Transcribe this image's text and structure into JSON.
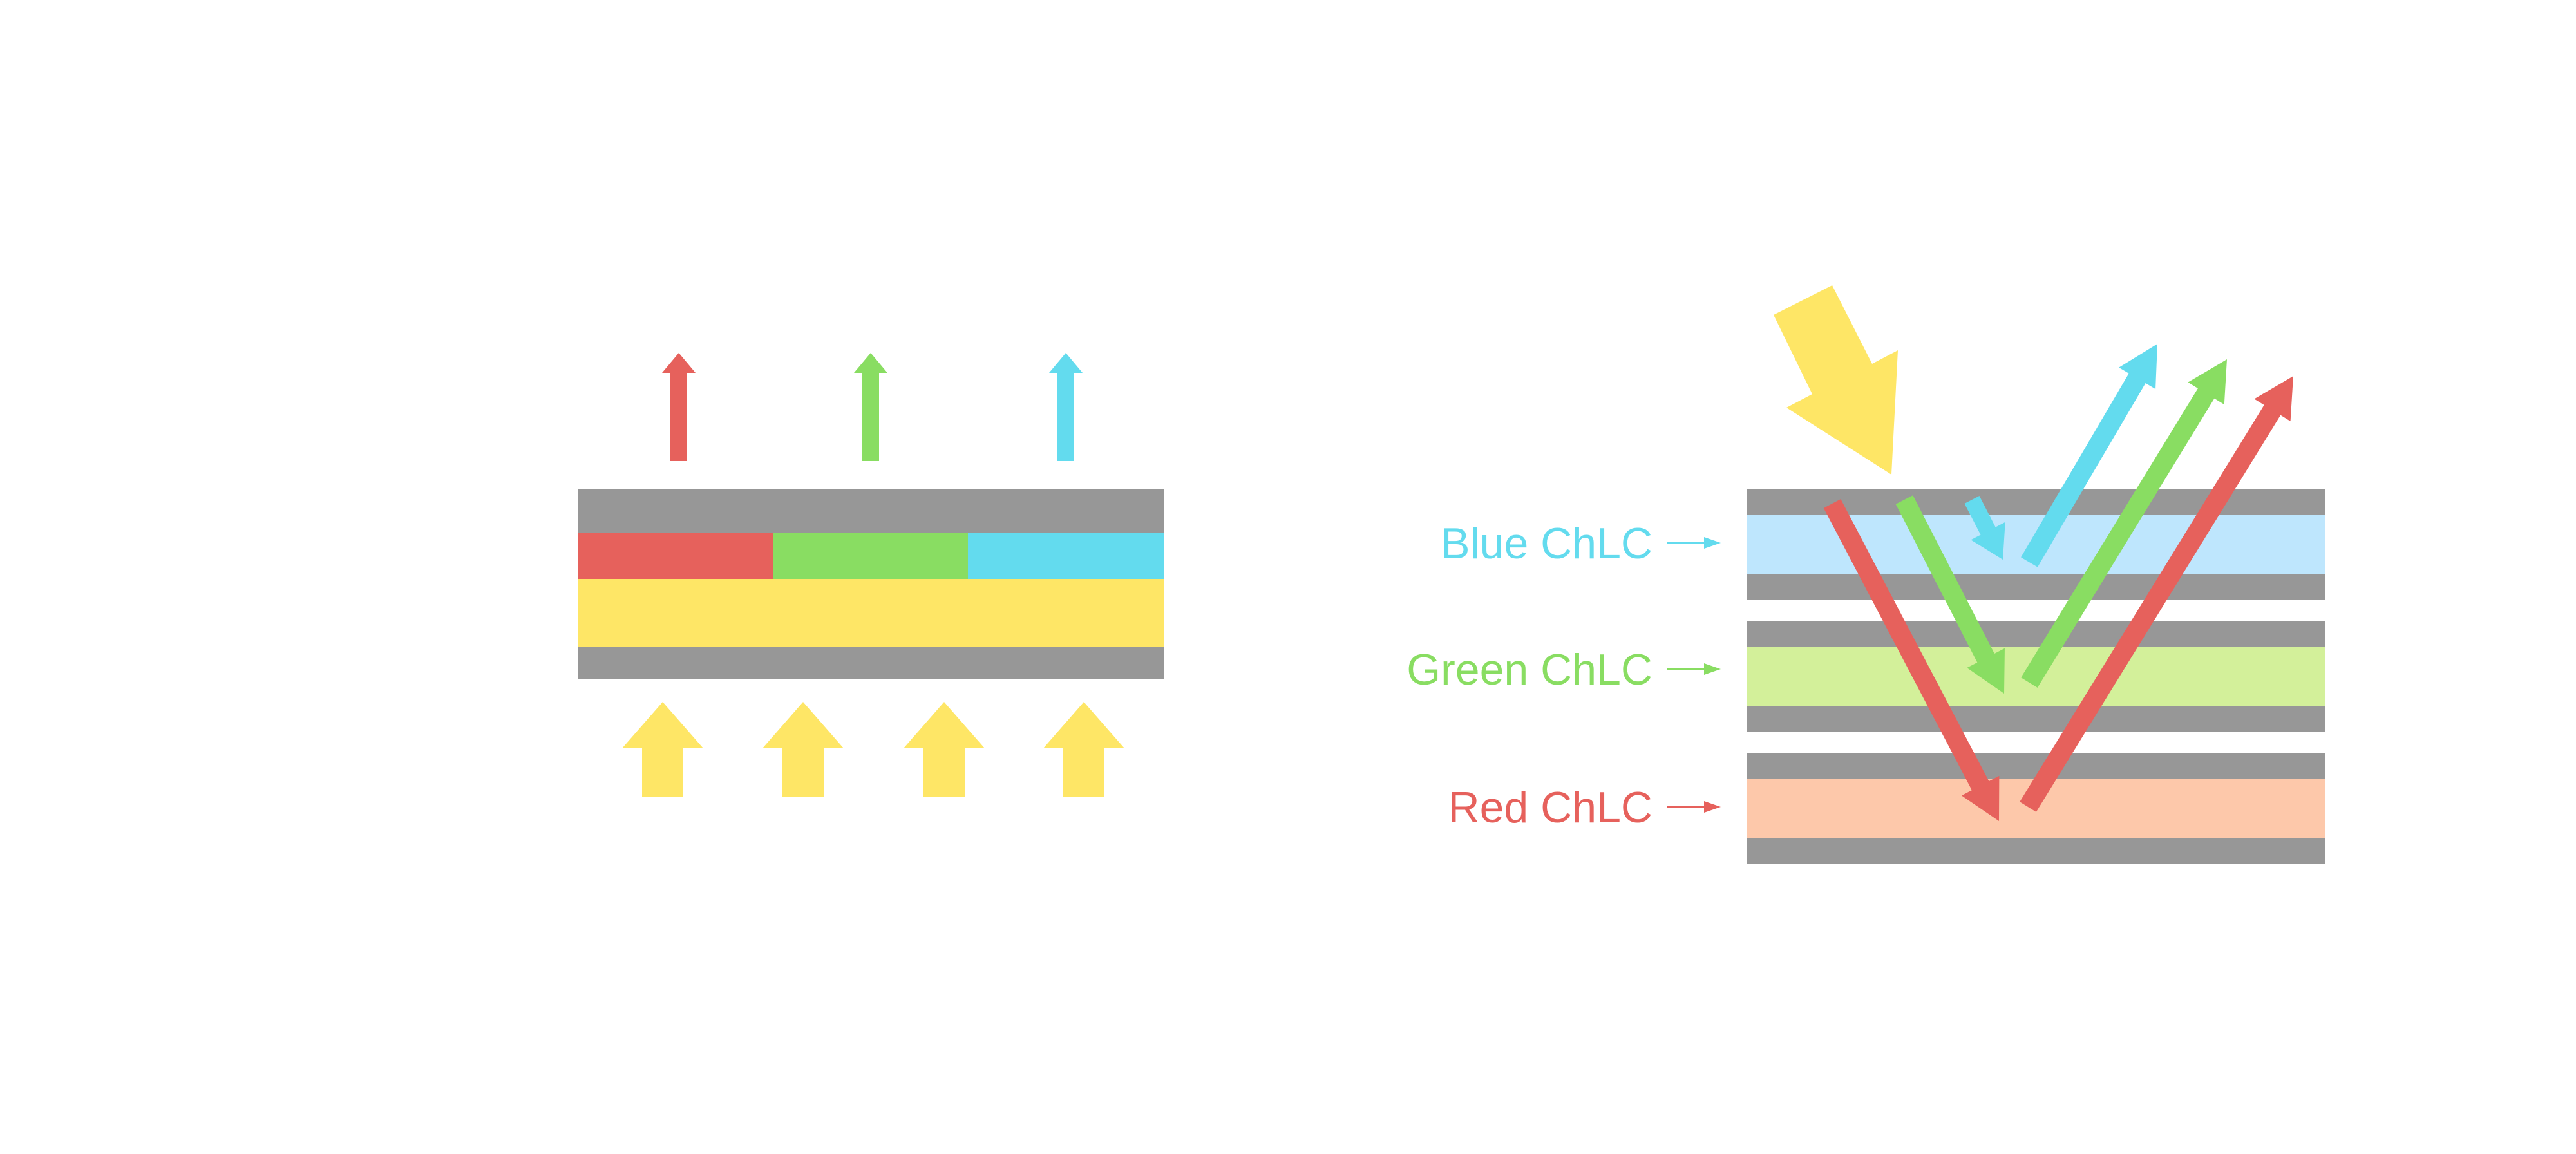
{
  "colors": {
    "gray": "#979797",
    "red": "#e6615c",
    "green": "#89dd62",
    "cyan": "#63dbee",
    "yellow": "#fee666",
    "blue_layer": "#bee6fd",
    "green_layer": "#d3f09a",
    "red_layer": "#fdc8aa"
  },
  "labels": {
    "blue": "Blue ChLC",
    "green": "Green ChLC",
    "red": "Red ChLC"
  }
}
